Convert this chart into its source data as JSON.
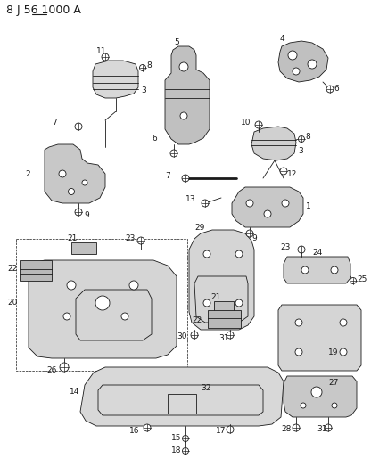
{
  "title": "8 J 56 1000 A",
  "bg_color": "#f5f5f5",
  "line_color": "#1a1a1a",
  "figsize": [
    4.16,
    5.33
  ],
  "dpi": 100,
  "underline_56": [
    [
      37,
      53
    ],
    [
      16,
      16
    ]
  ]
}
